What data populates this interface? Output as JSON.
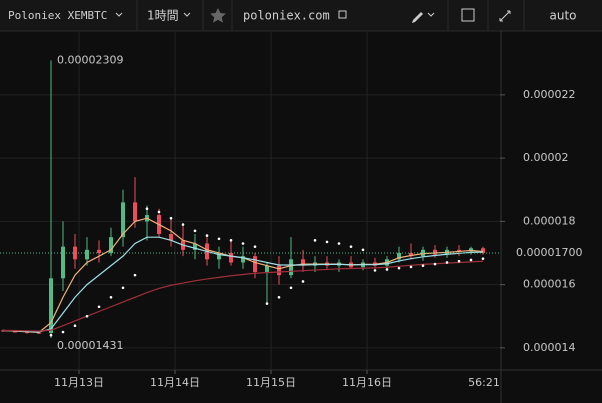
{
  "toolbar": {
    "symbol": "Poloniex XEMBTC",
    "interval": "1時間",
    "source": "poloniex.com",
    "scale_mode": "auto"
  },
  "chart_data": {
    "type": "candlestick",
    "x": [
      -19,
      -16,
      -13,
      -10,
      -7,
      -4,
      -1,
      2,
      5,
      8,
      11,
      14,
      17,
      20,
      23,
      26,
      29,
      32,
      35,
      38,
      41,
      44,
      47,
      50,
      53,
      56,
      59,
      62,
      65,
      68,
      71,
      74,
      77,
      80,
      83,
      86,
      89,
      92,
      95,
      98,
      101
    ],
    "open": [
      1.455e-05,
      1.452e-05,
      1.45e-05,
      1.448e-05,
      1.447e-05,
      1.62e-05,
      1.72e-05,
      1.68e-05,
      1.71e-05,
      1.7e-05,
      1.75e-05,
      1.86e-05,
      1.8e-05,
      1.82e-05,
      1.76e-05,
      1.74e-05,
      1.71e-05,
      1.73e-05,
      1.68e-05,
      1.7e-05,
      1.67e-05,
      1.69e-05,
      1.64e-05,
      1.66e-05,
      1.63e-05,
      1.68e-05,
      1.66e-05,
      1.67e-05,
      1.66e-05,
      1.67e-05,
      1.655e-05,
      1.67e-05,
      1.66e-05,
      1.68e-05,
      1.7e-05,
      1.69e-05,
      1.71e-05,
      1.695e-05,
      1.71e-05,
      1.705e-05,
      1.715e-05
    ],
    "high": [
      1.458e-05,
      1.456e-05,
      1.455e-05,
      1.452e-05,
      2.309e-05,
      1.8e-05,
      1.76e-05,
      1.75e-05,
      1.74e-05,
      1.78e-05,
      1.9e-05,
      1.94e-05,
      1.85e-05,
      1.84e-05,
      1.81e-05,
      1.79e-05,
      1.76e-05,
      1.75e-05,
      1.72e-05,
      1.74e-05,
      1.72e-05,
      1.7e-05,
      1.67e-05,
      1.69e-05,
      1.75e-05,
      1.71e-05,
      1.69e-05,
      1.69e-05,
      1.68e-05,
      1.69e-05,
      1.68e-05,
      1.685e-05,
      1.69e-05,
      1.72e-05,
      1.73e-05,
      1.72e-05,
      1.725e-05,
      1.72e-05,
      1.725e-05,
      1.72e-05,
      1.72e-05
    ],
    "low": [
      1.45e-05,
      1.448e-05,
      1.445e-05,
      1.444e-05,
      1.431e-05,
      1.58e-05,
      1.65e-05,
      1.66e-05,
      1.67e-05,
      1.69e-05,
      1.72e-05,
      1.78e-05,
      1.74e-05,
      1.75e-05,
      1.72e-05,
      1.69e-05,
      1.68e-05,
      1.66e-05,
      1.65e-05,
      1.66e-05,
      1.65e-05,
      1.62e-05,
      1.54e-05,
      1.6e-05,
      1.62e-05,
      1.64e-05,
      1.64e-05,
      1.65e-05,
      1.64e-05,
      1.65e-05,
      1.645e-05,
      1.65e-05,
      1.65e-05,
      1.67e-05,
      1.68e-05,
      1.675e-05,
      1.685e-05,
      1.685e-05,
      1.69e-05,
      1.695e-05,
      1.695e-05
    ],
    "close": [
      1.452e-05,
      1.45e-05,
      1.448e-05,
      1.447e-05,
      1.62e-05,
      1.72e-05,
      1.68e-05,
      1.71e-05,
      1.7e-05,
      1.75e-05,
      1.86e-05,
      1.8e-05,
      1.82e-05,
      1.76e-05,
      1.74e-05,
      1.71e-05,
      1.73e-05,
      1.68e-05,
      1.7e-05,
      1.67e-05,
      1.69e-05,
      1.64e-05,
      1.66e-05,
      1.63e-05,
      1.68e-05,
      1.66e-05,
      1.67e-05,
      1.66e-05,
      1.67e-05,
      1.655e-05,
      1.67e-05,
      1.66e-05,
      1.68e-05,
      1.7e-05,
      1.69e-05,
      1.71e-05,
      1.695e-05,
      1.71e-05,
      1.705e-05,
      1.715e-05,
      1.7e-05
    ],
    "up_color": "#53b987",
    "down_color": "#eb4d5c",
    "lines": [
      {
        "color": "#f0b27a",
        "values": [
          1.455e-05,
          1.453e-05,
          1.451e-05,
          1.449e-05,
          1.48e-05,
          1.56e-05,
          1.63e-05,
          1.67e-05,
          1.69e-05,
          1.71e-05,
          1.76e-05,
          1.8e-05,
          1.81e-05,
          1.79e-05,
          1.77e-05,
          1.74e-05,
          1.73e-05,
          1.71e-05,
          1.7e-05,
          1.69e-05,
          1.685e-05,
          1.67e-05,
          1.66e-05,
          1.65e-05,
          1.66e-05,
          1.665e-05,
          1.665e-05,
          1.665e-05,
          1.665e-05,
          1.662e-05,
          1.664e-05,
          1.664e-05,
          1.67e-05,
          1.685e-05,
          1.692e-05,
          1.698e-05,
          1.7e-05,
          1.702e-05,
          1.705e-05,
          1.708e-05,
          1.705e-05
        ]
      },
      {
        "color": "#9fe0e8",
        "values": [
          1.455e-05,
          1.454e-05,
          1.452e-05,
          1.45e-05,
          1.46e-05,
          1.51e-05,
          1.56e-05,
          1.6e-05,
          1.63e-05,
          1.66e-05,
          1.69e-05,
          1.73e-05,
          1.75e-05,
          1.75e-05,
          1.74e-05,
          1.725e-05,
          1.715e-05,
          1.705e-05,
          1.695e-05,
          1.69e-05,
          1.685e-05,
          1.678e-05,
          1.67e-05,
          1.662e-05,
          1.662e-05,
          1.662e-05,
          1.663e-05,
          1.664e-05,
          1.664e-05,
          1.663e-05,
          1.663e-05,
          1.663e-05,
          1.666e-05,
          1.675e-05,
          1.682e-05,
          1.688e-05,
          1.692e-05,
          1.696e-05,
          1.699e-05,
          1.702e-05,
          1.703e-05
        ]
      },
      {
        "color": "#a0303a",
        "values": [
          1.455e-05,
          1.455e-05,
          1.454e-05,
          1.453e-05,
          1.456e-05,
          1.47e-05,
          1.485e-05,
          1.5e-05,
          1.515e-05,
          1.53e-05,
          1.545e-05,
          1.56e-05,
          1.575e-05,
          1.588e-05,
          1.598e-05,
          1.605e-05,
          1.612e-05,
          1.618e-05,
          1.623e-05,
          1.628e-05,
          1.632e-05,
          1.636e-05,
          1.638e-05,
          1.64e-05,
          1.642e-05,
          1.644e-05,
          1.646e-05,
          1.648e-05,
          1.65e-05,
          1.651e-05,
          1.652e-05,
          1.653e-05,
          1.655e-05,
          1.658e-05,
          1.661e-05,
          1.664e-05,
          1.666e-05,
          1.668e-05,
          1.67e-05,
          1.672e-05,
          1.674e-05
        ]
      }
    ],
    "sar": {
      "color": "#ffffff",
      "values": [
        null,
        null,
        null,
        null,
        1.44e-05,
        1.45e-05,
        1.47e-05,
        1.5e-05,
        1.53e-05,
        1.56e-05,
        1.59e-05,
        1.63e-05,
        1.84e-05,
        1.83e-05,
        1.81e-05,
        1.79e-05,
        1.77e-05,
        1.755e-05,
        1.745e-05,
        1.74e-05,
        1.73e-05,
        1.72e-05,
        1.54e-05,
        1.56e-05,
        1.59e-05,
        1.61e-05,
        1.74e-05,
        1.735e-05,
        1.73e-05,
        1.72e-05,
        1.71e-05,
        1.645e-05,
        1.648e-05,
        1.652e-05,
        1.656e-05,
        1.66e-05,
        1.665e-05,
        1.67e-05,
        1.674e-05,
        1.678e-05,
        1.682e-05
      ]
    },
    "high_label": {
      "value": 2.309e-05,
      "label": "0.00002309"
    },
    "low_label": {
      "value": 1.431e-05,
      "label": "0.00001431"
    },
    "last_price": {
      "value": 1.7e-05,
      "label": "0.00001700"
    },
    "countdown": "56:21",
    "xlim": [
      -19.75,
      105.25
    ],
    "xticks": [
      {
        "value": 0,
        "label": "11月13日"
      },
      {
        "value": 24,
        "label": "11月14日"
      },
      {
        "value": 48,
        "label": "11月15日"
      },
      {
        "value": 72,
        "label": "11月16日"
      }
    ],
    "ylim": [
      1.33e-05,
      2.402e-05
    ],
    "yticks": [
      1.4e-05,
      1.6e-05,
      1.8e-05,
      2e-05,
      2.2e-05
    ],
    "grid": true
  }
}
